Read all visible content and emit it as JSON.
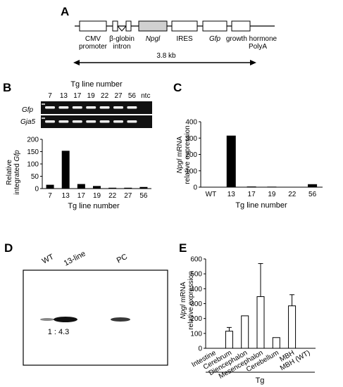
{
  "panels": {
    "A": {
      "letter": "A",
      "labels": {
        "cmv1": "CMV",
        "cmv2": "promoter",
        "bglobin1": "β-globin",
        "bglobin2": "intron",
        "npgl": "Npgl",
        "ires": "IRES",
        "gfp": "Gfp",
        "gh1": "growth hormone",
        "gh2": "PolyA"
      },
      "size": "3.8 kb",
      "colors": {
        "npgl_box": "#d0d0d0",
        "box": "#ffffff"
      }
    },
    "B": {
      "letter": "B",
      "gel_header": "Tg line number",
      "lanes": [
        "7",
        "13",
        "17",
        "19",
        "22",
        "27",
        "56",
        "ntc"
      ],
      "row_gfp": "Gfp",
      "row_gja5": "Gja5",
      "ylabel1": "Relative",
      "ylabel2_prefix": "integrated ",
      "ylabel2_italic": "Gfp",
      "xlabel": "Tg line number"
    },
    "C": {
      "letter": "C",
      "ylabel1_italic": "Npgl",
      "ylabel1_rest": " mRNA",
      "ylabel2": "relative expression",
      "xlabel": "Tg line number"
    },
    "D": {
      "letter": "D",
      "lanes": [
        "WT",
        "13-line",
        "PC"
      ],
      "ratio": "1 : 4.3"
    },
    "E": {
      "letter": "E",
      "ylabel1_italic": "Npgl",
      "ylabel1_rest": " mRNA",
      "ylabel2": "relative expression",
      "group": "Tg"
    }
  },
  "chart_data": [
    {
      "id": "B",
      "type": "bar",
      "categories": [
        "7",
        "13",
        "17",
        "19",
        "22",
        "27",
        "56"
      ],
      "values": [
        14,
        152,
        17,
        9,
        2,
        2,
        5
      ],
      "xlabel": "Tg line number",
      "ylabel": "Relative integrated Gfp",
      "ylim": [
        0,
        200
      ],
      "yticks": [
        0,
        50,
        100,
        150,
        200
      ],
      "bar_color": "#000000"
    },
    {
      "id": "C",
      "type": "bar",
      "categories": [
        "WT",
        "13",
        "17",
        "19",
        "22",
        "56"
      ],
      "values": [
        0,
        313,
        2,
        1,
        0,
        16
      ],
      "xlabel": "Tg line number",
      "ylabel": "Npgl mRNA relative expression",
      "ylim": [
        0,
        400
      ],
      "yticks": [
        0,
        100,
        200,
        300,
        400
      ],
      "bar_color": "#000000"
    },
    {
      "id": "E",
      "type": "bar",
      "categories": [
        "Intestine",
        "Cerebrum",
        "Diencephalon",
        "Mesencephalon",
        "Cerebellum",
        "MBH",
        "MBH (WT)"
      ],
      "values": [
        0,
        115,
        218,
        347,
        72,
        285,
        0
      ],
      "errors": [
        0,
        25,
        0,
        222,
        0,
        75,
        0
      ],
      "ylabel": "Npgl mRNA relative expression",
      "ylim": [
        0,
        600
      ],
      "yticks": [
        0,
        100,
        200,
        300,
        400,
        500,
        600
      ],
      "bar_color": "#ffffff"
    }
  ]
}
